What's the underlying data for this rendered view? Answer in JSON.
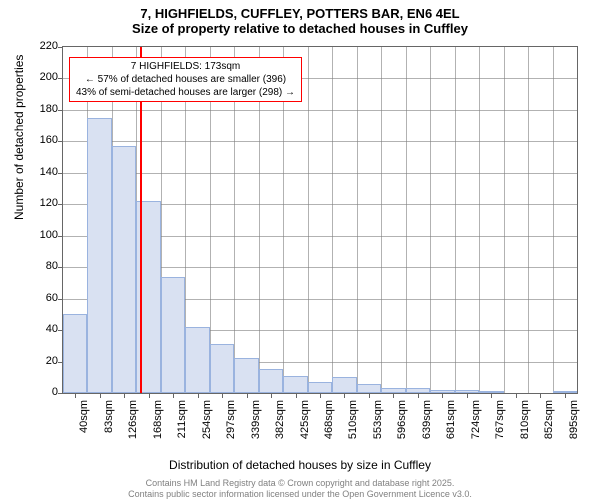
{
  "title_main": "7, HIGHFIELDS, CUFFLEY, POTTERS BAR, EN6 4EL",
  "title_sub": "Size of property relative to detached houses in Cuffley",
  "y_axis_label": "Number of detached properties",
  "x_axis_label": "Distribution of detached houses by size in Cuffley",
  "footer_1": "Contains HM Land Registry data © Crown copyright and database right 2025.",
  "footer_2": "Contains public sector information licensed under the Open Government Licence v3.0.",
  "annotation_title": "7 HIGHFIELDS: 173sqm",
  "annotation_line1": "← 57% of detached houses are smaller (396)",
  "annotation_line2": "43% of semi-detached houses are larger (298) →",
  "chart": {
    "type": "bar",
    "ylim": [
      0,
      220
    ],
    "ytick_step": 20,
    "background_color": "#ffffff",
    "grid_color": "#7f7f7f",
    "bar_fill_color": "#d9e1f2",
    "bar_border_color": "#9ab3df",
    "reference_line_color": "#ff0000",
    "reference_value": 173,
    "x_start": 40,
    "x_step": 42.5,
    "categories": [
      "40sqm",
      "83sqm",
      "126sqm",
      "168sqm",
      "211sqm",
      "254sqm",
      "297sqm",
      "339sqm",
      "382sqm",
      "425sqm",
      "468sqm",
      "510sqm",
      "553sqm",
      "596sqm",
      "639sqm",
      "681sqm",
      "724sqm",
      "767sqm",
      "810sqm",
      "852sqm",
      "895sqm"
    ],
    "values": [
      50,
      175,
      157,
      122,
      74,
      42,
      31,
      22,
      15,
      11,
      7,
      10,
      6,
      3,
      3,
      2,
      2,
      1,
      0,
      0,
      1
    ]
  }
}
